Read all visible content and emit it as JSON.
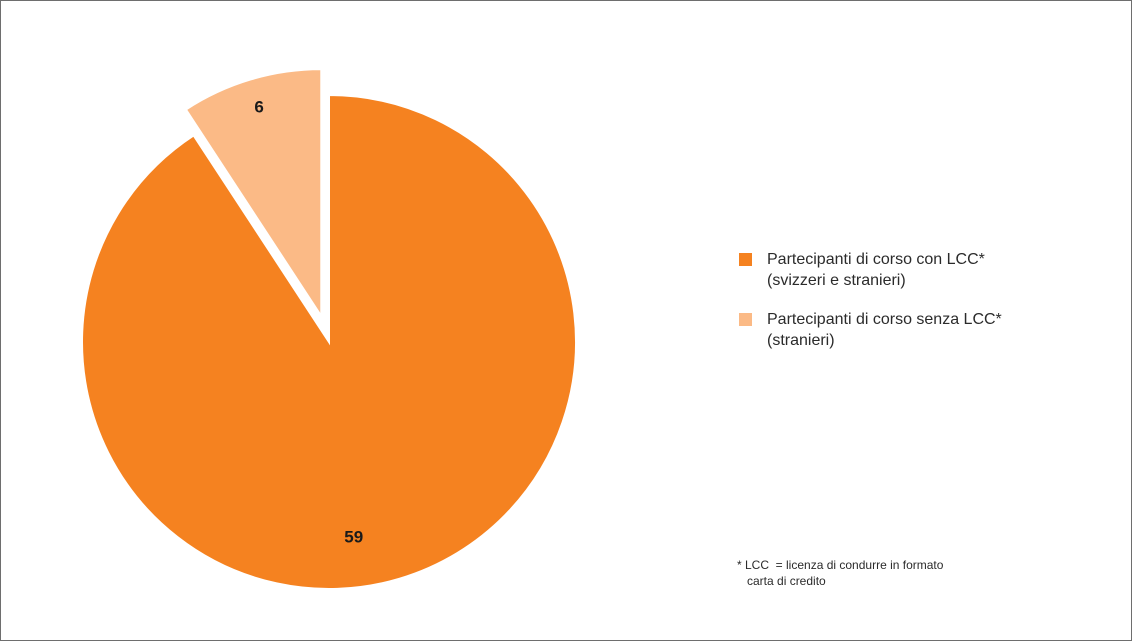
{
  "chart_data": {
    "type": "pie",
    "slices": [
      {
        "label_line1": "Partecipanti di corso con LCC*",
        "label_line2": "(svizzeri e stranieri)",
        "value": 59,
        "value_label": "59",
        "color": "#F58220"
      },
      {
        "label_line1": "Partecipanti di corso senza LCC*",
        "label_line2": "(stranieri)",
        "value": 6,
        "value_label": "6",
        "color": "#FBBA86",
        "exploded": true
      }
    ],
    "legend_placement": "right",
    "footnote": {
      "line1": "* LCC  = licenza di condurre in formato",
      "line2": "   carta di credito"
    }
  }
}
